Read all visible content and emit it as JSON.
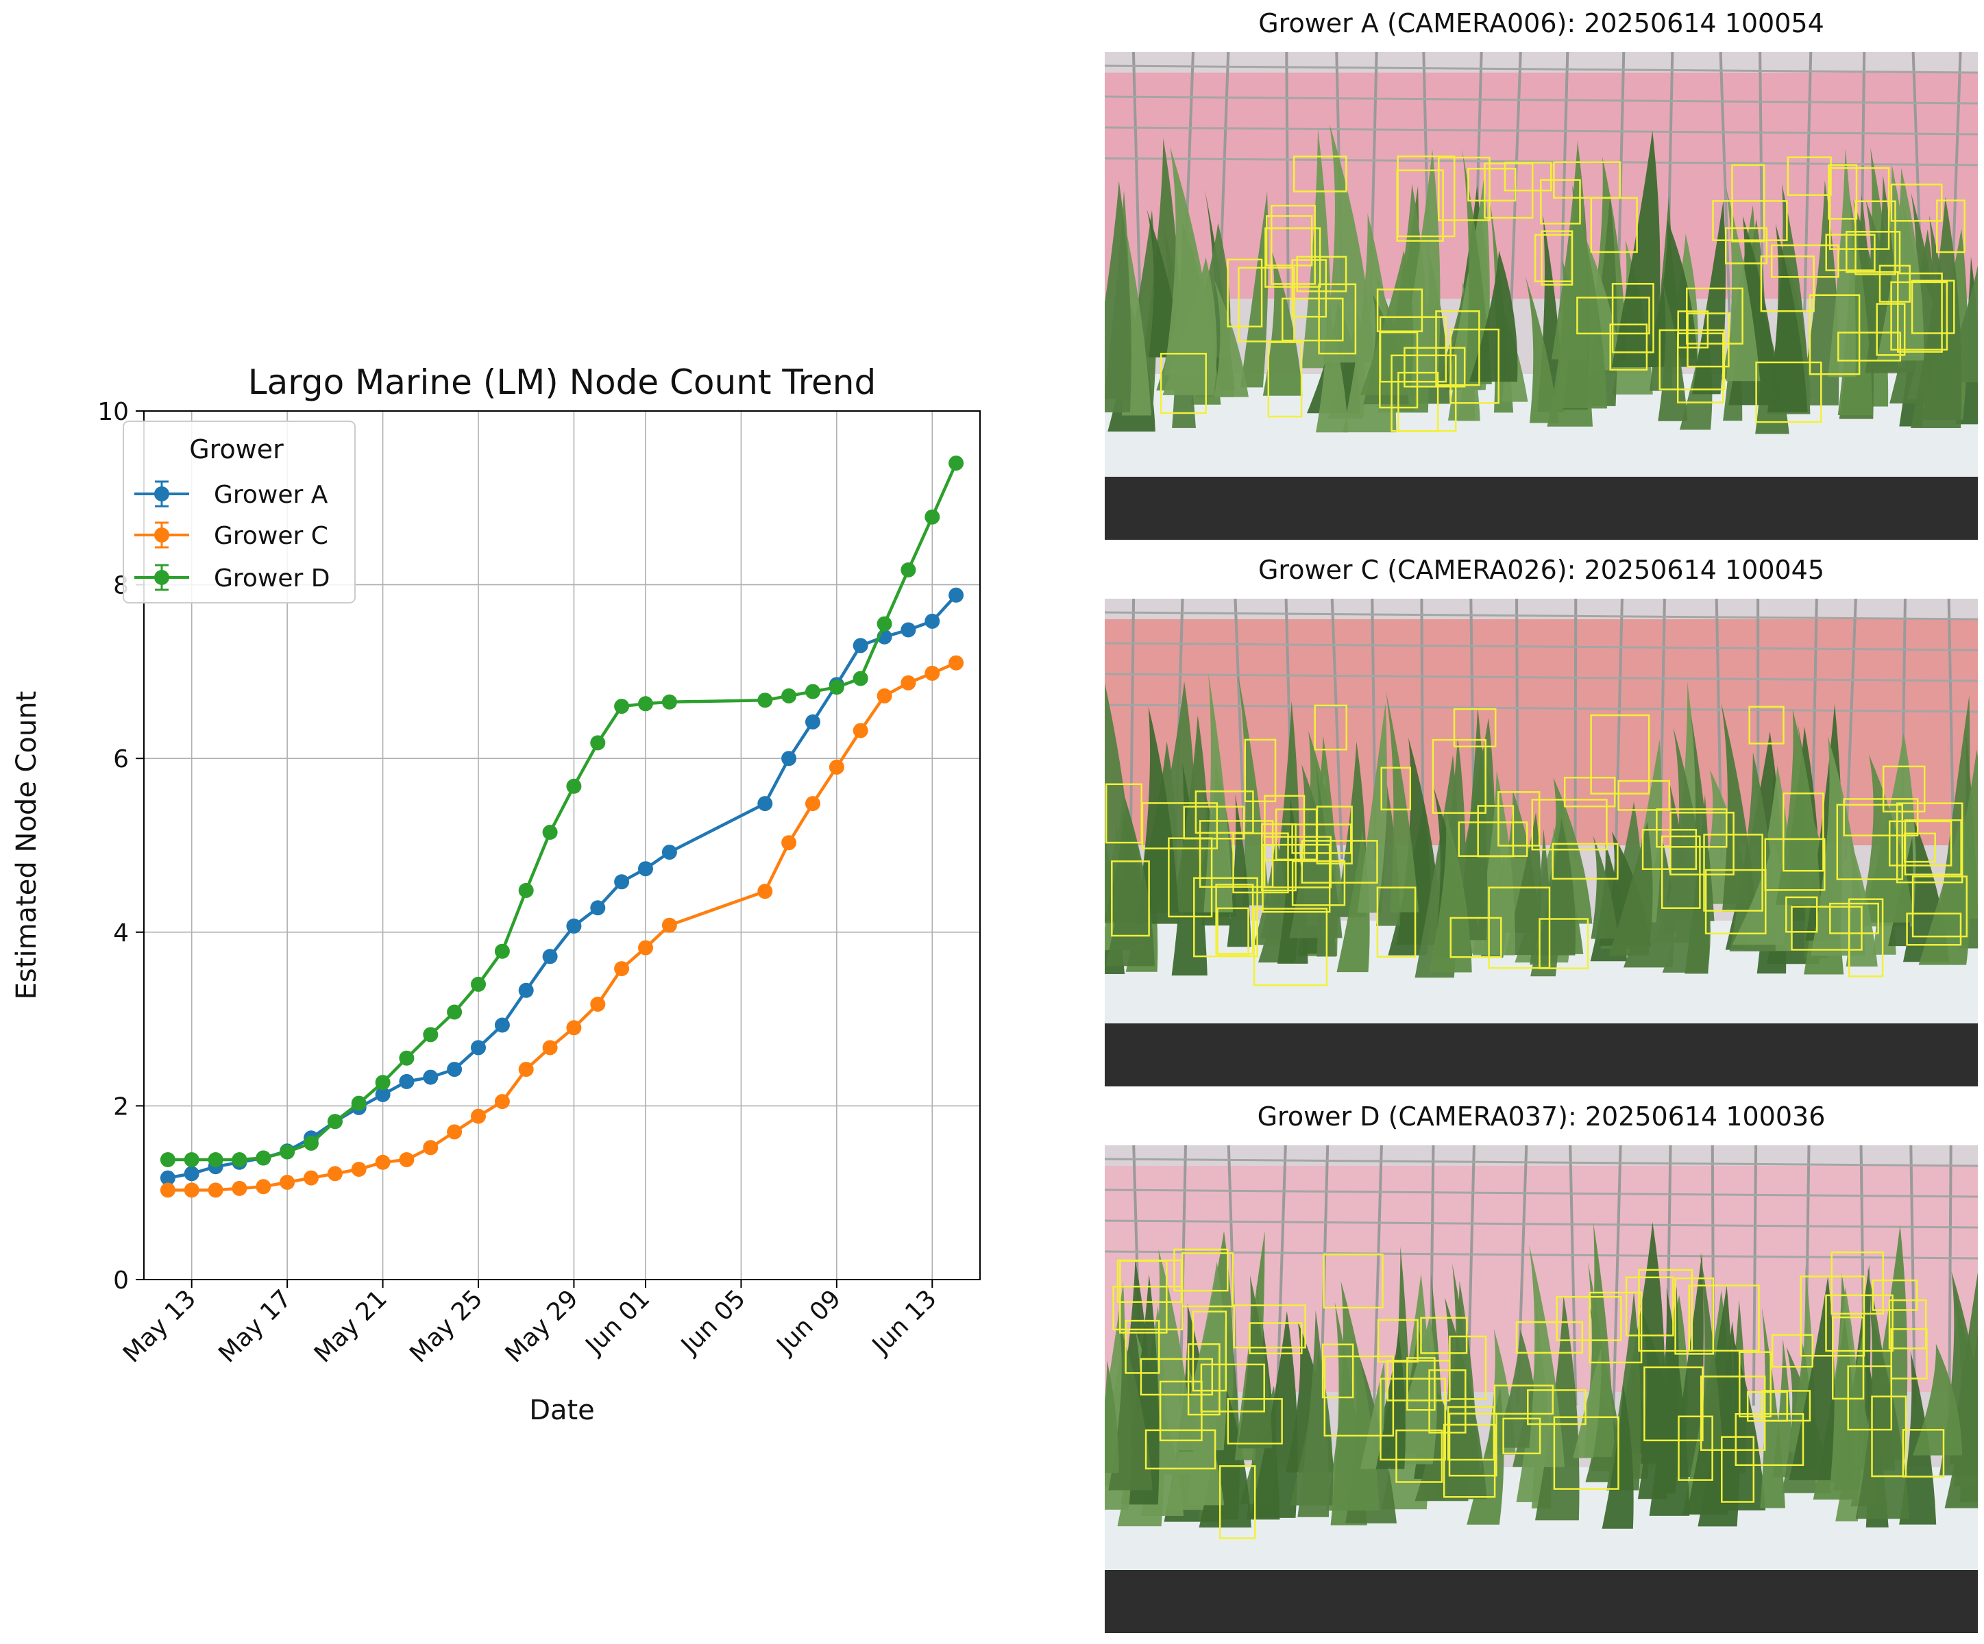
{
  "chart_data": {
    "type": "line",
    "title": "Largo Marine (LM) Node Count Trend",
    "xlabel": "Date",
    "ylabel": "Estimated Node Count",
    "x_tick_labels": [
      "May 13",
      "May 17",
      "May 21",
      "May 25",
      "May 29",
      "Jun 01",
      "Jun 05",
      "Jun 09",
      "Jun 13"
    ],
    "x_tick_dates": [
      "2025-05-13",
      "2025-05-17",
      "2025-05-21",
      "2025-05-25",
      "2025-05-29",
      "2025-06-01",
      "2025-06-05",
      "2025-06-09",
      "2025-06-13"
    ],
    "xlim": [
      "2025-05-11",
      "2025-06-15"
    ],
    "ylim": [
      0,
      10
    ],
    "y_ticks": [
      0,
      2,
      4,
      6,
      8,
      10
    ],
    "grid": true,
    "legend": {
      "title": "Grower",
      "location": "top-left"
    },
    "series": [
      {
        "name": "Grower A",
        "color": "#1f77b4",
        "points": [
          [
            "2025-05-12",
            1.17
          ],
          [
            "2025-05-13",
            1.22
          ],
          [
            "2025-05-14",
            1.3
          ],
          [
            "2025-05-15",
            1.35
          ],
          [
            "2025-05-16",
            1.4
          ],
          [
            "2025-05-17",
            1.48
          ],
          [
            "2025-05-18",
            1.63
          ],
          [
            "2025-05-19",
            1.82
          ],
          [
            "2025-05-20",
            1.98
          ],
          [
            "2025-05-21",
            2.13
          ],
          [
            "2025-05-22",
            2.28
          ],
          [
            "2025-05-23",
            2.33
          ],
          [
            "2025-05-24",
            2.42
          ],
          [
            "2025-05-25",
            2.67
          ],
          [
            "2025-05-26",
            2.93
          ],
          [
            "2025-05-27",
            3.33
          ],
          [
            "2025-05-28",
            3.72
          ],
          [
            "2025-05-29",
            4.07
          ],
          [
            "2025-05-30",
            4.28
          ],
          [
            "2025-05-31",
            4.58
          ],
          [
            "2025-06-01",
            4.73
          ],
          [
            "2025-06-02",
            4.92
          ],
          [
            "2025-06-06",
            5.48
          ],
          [
            "2025-06-07",
            6.0
          ],
          [
            "2025-06-08",
            6.42
          ],
          [
            "2025-06-09",
            6.85
          ],
          [
            "2025-06-10",
            7.3
          ],
          [
            "2025-06-11",
            7.4
          ],
          [
            "2025-06-12",
            7.48
          ],
          [
            "2025-06-13",
            7.58
          ],
          [
            "2025-06-14",
            7.88
          ]
        ]
      },
      {
        "name": "Grower C",
        "color": "#ff7f0e",
        "points": [
          [
            "2025-05-12",
            1.03
          ],
          [
            "2025-05-13",
            1.03
          ],
          [
            "2025-05-14",
            1.03
          ],
          [
            "2025-05-15",
            1.05
          ],
          [
            "2025-05-16",
            1.07
          ],
          [
            "2025-05-17",
            1.12
          ],
          [
            "2025-05-18",
            1.17
          ],
          [
            "2025-05-19",
            1.22
          ],
          [
            "2025-05-20",
            1.27
          ],
          [
            "2025-05-21",
            1.35
          ],
          [
            "2025-05-22",
            1.38
          ],
          [
            "2025-05-23",
            1.52
          ],
          [
            "2025-05-24",
            1.7
          ],
          [
            "2025-05-25",
            1.88
          ],
          [
            "2025-05-26",
            2.05
          ],
          [
            "2025-05-27",
            2.42
          ],
          [
            "2025-05-28",
            2.67
          ],
          [
            "2025-05-29",
            2.9
          ],
          [
            "2025-05-30",
            3.17
          ],
          [
            "2025-05-31",
            3.58
          ],
          [
            "2025-06-01",
            3.82
          ],
          [
            "2025-06-02",
            4.08
          ],
          [
            "2025-06-06",
            4.47
          ],
          [
            "2025-06-07",
            5.03
          ],
          [
            "2025-06-08",
            5.48
          ],
          [
            "2025-06-09",
            5.9
          ],
          [
            "2025-06-10",
            6.32
          ],
          [
            "2025-06-11",
            6.72
          ],
          [
            "2025-06-12",
            6.87
          ],
          [
            "2025-06-13",
            6.98
          ],
          [
            "2025-06-14",
            7.1
          ]
        ]
      },
      {
        "name": "Grower D",
        "color": "#2ca02c",
        "points": [
          [
            "2025-05-12",
            1.38
          ],
          [
            "2025-05-13",
            1.38
          ],
          [
            "2025-05-14",
            1.38
          ],
          [
            "2025-05-15",
            1.38
          ],
          [
            "2025-05-16",
            1.4
          ],
          [
            "2025-05-17",
            1.47
          ],
          [
            "2025-05-18",
            1.57
          ],
          [
            "2025-05-19",
            1.82
          ],
          [
            "2025-05-20",
            2.03
          ],
          [
            "2025-05-21",
            2.27
          ],
          [
            "2025-05-22",
            2.55
          ],
          [
            "2025-05-23",
            2.82
          ],
          [
            "2025-05-24",
            3.08
          ],
          [
            "2025-05-25",
            3.4
          ],
          [
            "2025-05-26",
            3.78
          ],
          [
            "2025-05-27",
            4.48
          ],
          [
            "2025-05-28",
            5.15
          ],
          [
            "2025-05-29",
            5.68
          ],
          [
            "2025-05-30",
            6.18
          ],
          [
            "2025-05-31",
            6.6
          ],
          [
            "2025-06-01",
            6.63
          ],
          [
            "2025-06-02",
            6.65
          ],
          [
            "2025-06-06",
            6.67
          ],
          [
            "2025-06-07",
            6.72
          ],
          [
            "2025-06-08",
            6.77
          ],
          [
            "2025-06-09",
            6.82
          ],
          [
            "2025-06-10",
            6.92
          ],
          [
            "2025-06-11",
            7.55
          ],
          [
            "2025-06-12",
            8.17
          ],
          [
            "2025-06-13",
            8.78
          ],
          [
            "2025-06-14",
            9.4
          ]
        ]
      }
    ]
  },
  "image_panels": [
    {
      "title": "Grower A (CAMERA006): 20250614 100054",
      "curtain_color": "#e8a7b6",
      "box_color": "#f3f03a"
    },
    {
      "title": "Grower C (CAMERA026): 20250614 100045",
      "curtain_color": "#e49a98",
      "box_color": "#f3f03a"
    },
    {
      "title": "Grower D (CAMERA037): 20250614 100036",
      "curtain_color": "#e9b8c4",
      "box_color": "#f3f03a"
    }
  ]
}
